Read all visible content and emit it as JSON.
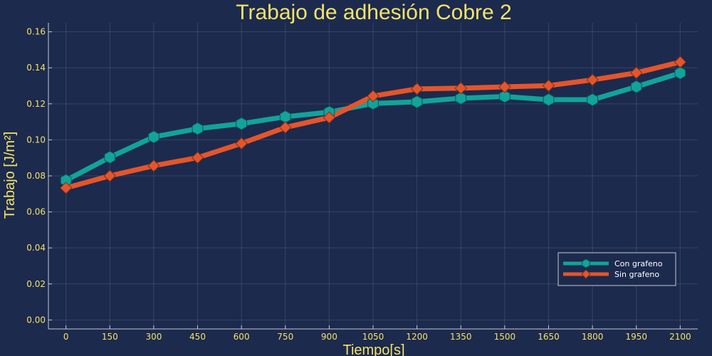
{
  "chart_data": {
    "type": "line",
    "title": "Trabajo de adhesión Cobre 2",
    "xlabel": "Tiempo[s]",
    "ylabel": "Trabajo [J/m²]",
    "x": [
      0,
      150,
      300,
      450,
      600,
      750,
      900,
      1050,
      1200,
      1350,
      1500,
      1650,
      1800,
      1950,
      2100
    ],
    "xticks": [
      "0",
      "150",
      "300",
      "450",
      "600",
      "750",
      "900",
      "1050",
      "1200",
      "1350",
      "1500",
      "1650",
      "1800",
      "1950",
      "2100"
    ],
    "yticks": [
      "0.00",
      "0.02",
      "0.04",
      "0.06",
      "0.08",
      "0.10",
      "0.12",
      "0.14",
      "0.16"
    ],
    "xlim": [
      -60,
      2160
    ],
    "ylim": [
      -0.005,
      0.165
    ],
    "grid": true,
    "legend_position": "bottom-right",
    "series": [
      {
        "name": "Con grafeno",
        "color": "#12a39a",
        "marker": "hexagon",
        "values": [
          0.0775,
          0.0903,
          0.1016,
          0.1062,
          0.109,
          0.1128,
          0.1154,
          0.1202,
          0.1211,
          0.1231,
          0.1241,
          0.1223,
          0.1223,
          0.1295,
          0.1371
        ]
      },
      {
        "name": "Sin grafeno",
        "color": "#e4552c",
        "marker": "diamond",
        "values": [
          0.0733,
          0.08,
          0.0856,
          0.0901,
          0.098,
          0.1069,
          0.1124,
          0.1243,
          0.1283,
          0.1287,
          0.1294,
          0.1301,
          0.1333,
          0.1372,
          0.1432
        ]
      }
    ]
  }
}
